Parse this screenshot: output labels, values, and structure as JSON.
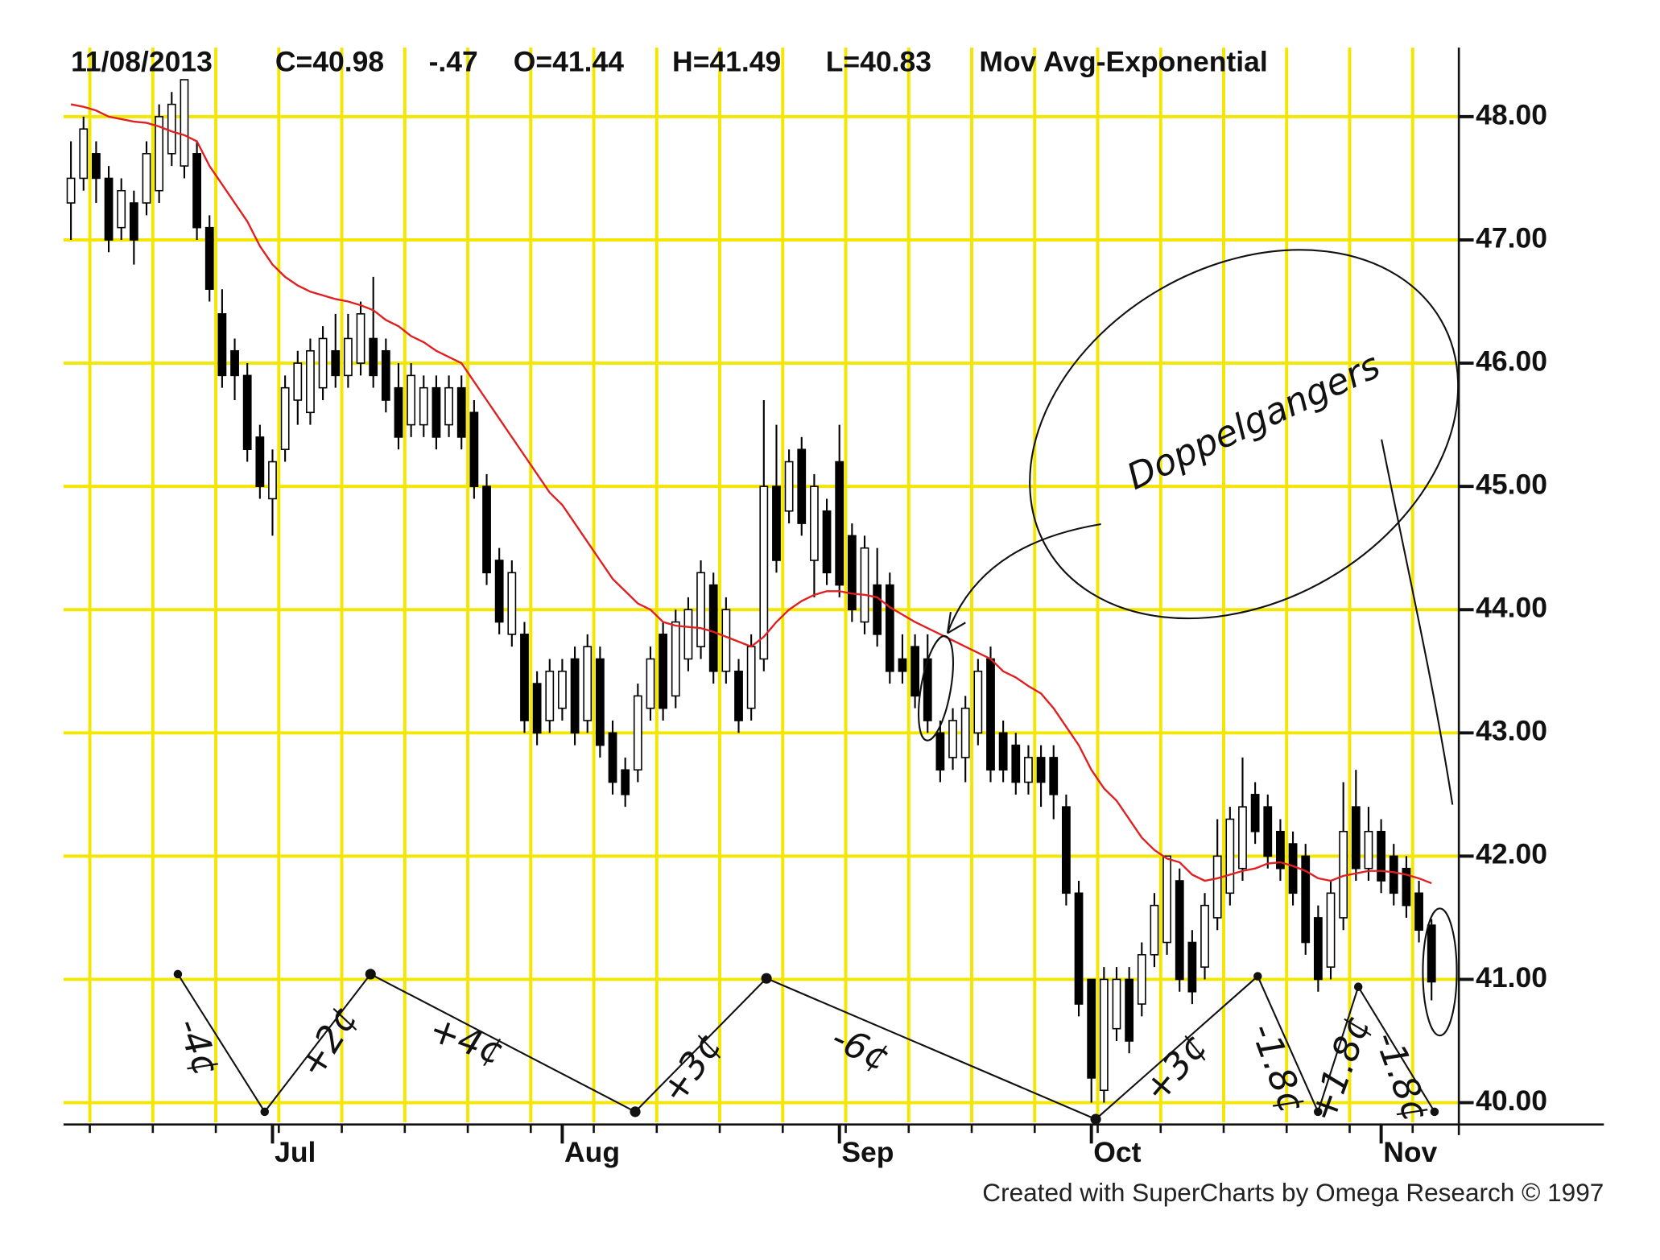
{
  "chart_data": {
    "type": "candlestick",
    "date": "11/08/2013",
    "quote": [
      {
        "text": "C=40.98"
      },
      {
        "text": "-.47",
        "color": "#d42020"
      },
      {
        "text": "O=41.44"
      },
      {
        "text": "H=41.49"
      },
      {
        "text": "L=40.83"
      }
    ],
    "categories": [
      null,
      null,
      null,
      null,
      null,
      null,
      null,
      null,
      null,
      null,
      null,
      null,
      null,
      null,
      null,
      null,
      "Jul",
      null,
      null,
      null,
      null,
      null,
      null,
      null,
      null,
      null,
      null,
      null,
      null,
      null,
      null,
      null,
      null,
      null,
      null,
      null,
      null,
      null,
      null,
      "Aug",
      null,
      null,
      null,
      null,
      null,
      null,
      null,
      null,
      null,
      null,
      null,
      null,
      null,
      null,
      null,
      null,
      null,
      null,
      null,
      null,
      null,
      "Sep",
      null,
      null,
      null,
      null,
      null,
      null,
      null,
      null,
      null,
      null,
      null,
      null,
      null,
      null,
      null,
      null,
      null,
      null,
      null,
      "Oct",
      null,
      null,
      null,
      null,
      null,
      null,
      null,
      null,
      null,
      null,
      null,
      null,
      null,
      null,
      null,
      null,
      null,
      null,
      null,
      null,
      null,
      null,
      "Nov",
      null,
      null,
      null,
      null
    ],
    "open": [
      47.3,
      47.5,
      47.7,
      47.5,
      47.1,
      47.3,
      47.3,
      47.4,
      47.7,
      47.6,
      47.7,
      47.1,
      46.4,
      46.1,
      45.9,
      45.4,
      44.9,
      45.3,
      45.7,
      45.6,
      45.8,
      46.1,
      45.9,
      46.0,
      46.2,
      46.1,
      45.8,
      45.5,
      45.5,
      45.8,
      45.5,
      45.8,
      45.6,
      45.0,
      44.4,
      43.8,
      43.8,
      43.4,
      43.1,
      43.2,
      43.6,
      43.1,
      43.6,
      43.0,
      42.7,
      42.7,
      43.2,
      43.8,
      43.3,
      43.6,
      43.7,
      44.2,
      43.5,
      43.5,
      43.2,
      43.6,
      45.0,
      44.8,
      45.3,
      44.4,
      44.8,
      45.2,
      44.6,
      43.9,
      44.2,
      44.2,
      43.6,
      43.7,
      43.6,
      43.0,
      42.8,
      42.8,
      43.0,
      43.6,
      43.0,
      42.9,
      42.6,
      42.8,
      42.8,
      42.4,
      41.7,
      41.0,
      40.1,
      40.6,
      41.0,
      40.8,
      41.2,
      41.3,
      41.8,
      41.3,
      41.1,
      41.5,
      41.7,
      41.9,
      42.5,
      42.4,
      42.2,
      42.1,
      42.0,
      41.5,
      41.1,
      41.5,
      42.4,
      41.9,
      42.2,
      42.0,
      41.9,
      41.7,
      41.44
    ],
    "high": [
      47.8,
      48.0,
      47.8,
      47.6,
      47.5,
      47.4,
      47.8,
      48.1,
      48.2,
      48.3,
      47.8,
      47.2,
      46.6,
      46.2,
      46.0,
      45.5,
      45.3,
      45.9,
      46.1,
      46.2,
      46.3,
      46.4,
      46.4,
      46.5,
      46.7,
      46.2,
      46.0,
      46.0,
      45.9,
      45.9,
      45.9,
      45.9,
      45.7,
      45.1,
      44.5,
      44.4,
      43.9,
      43.5,
      43.6,
      43.6,
      43.7,
      43.8,
      43.7,
      43.1,
      42.8,
      43.4,
      43.7,
      43.9,
      44.0,
      44.1,
      44.4,
      44.3,
      44.1,
      43.6,
      43.8,
      45.7,
      45.5,
      45.3,
      45.4,
      45.1,
      44.9,
      45.5,
      44.7,
      44.6,
      44.5,
      44.3,
      43.8,
      43.8,
      43.8,
      43.1,
      43.2,
      43.3,
      43.6,
      43.7,
      43.1,
      43.0,
      42.9,
      42.9,
      42.9,
      42.5,
      41.8,
      41.0,
      41.1,
      41.1,
      41.1,
      41.3,
      41.7,
      42.0,
      41.9,
      41.4,
      41.7,
      42.3,
      42.4,
      42.8,
      42.6,
      42.5,
      42.3,
      42.2,
      42.1,
      41.6,
      41.8,
      42.6,
      42.7,
      42.4,
      42.3,
      42.1,
      42.0,
      41.8,
      41.49
    ],
    "low": [
      47.0,
      47.4,
      47.3,
      46.9,
      47.0,
      46.8,
      47.2,
      47.3,
      47.6,
      47.5,
      47.0,
      46.5,
      45.8,
      45.7,
      45.2,
      44.9,
      44.6,
      45.2,
      45.5,
      45.5,
      45.7,
      45.8,
      45.8,
      45.9,
      45.8,
      45.6,
      45.3,
      45.4,
      45.4,
      45.3,
      45.4,
      45.3,
      44.9,
      44.2,
      43.8,
      43.7,
      43.0,
      42.9,
      43.0,
      43.1,
      42.9,
      43.0,
      42.8,
      42.5,
      42.4,
      42.6,
      43.1,
      43.1,
      43.2,
      43.5,
      43.6,
      43.4,
      43.4,
      43.0,
      43.1,
      43.5,
      44.3,
      44.7,
      44.6,
      44.1,
      44.2,
      44.1,
      43.9,
      43.8,
      43.7,
      43.4,
      43.4,
      43.2,
      43.0,
      42.6,
      42.7,
      42.6,
      42.9,
      42.6,
      42.6,
      42.5,
      42.5,
      42.4,
      42.3,
      41.6,
      40.7,
      40.0,
      40.0,
      40.5,
      40.4,
      40.7,
      41.1,
      41.2,
      40.9,
      40.8,
      41.0,
      41.4,
      41.6,
      41.8,
      42.1,
      41.9,
      41.8,
      41.6,
      41.2,
      40.9,
      41.0,
      41.4,
      41.8,
      41.8,
      41.7,
      41.6,
      41.5,
      41.3,
      40.83
    ],
    "close": [
      47.5,
      47.9,
      47.5,
      47.0,
      47.4,
      47.0,
      47.7,
      48.0,
      48.1,
      48.3,
      47.1,
      46.6,
      45.9,
      45.9,
      45.3,
      45.0,
      45.2,
      45.8,
      46.0,
      46.1,
      46.2,
      45.9,
      46.2,
      46.4,
      45.9,
      45.7,
      45.4,
      45.9,
      45.8,
      45.4,
      45.8,
      45.4,
      45.0,
      44.3,
      43.9,
      44.3,
      43.1,
      43.0,
      43.5,
      43.5,
      43.0,
      43.7,
      42.9,
      42.6,
      42.5,
      43.3,
      43.6,
      43.2,
      43.9,
      44.0,
      44.3,
      43.5,
      44.0,
      43.1,
      43.7,
      45.0,
      44.4,
      45.2,
      44.7,
      45.0,
      44.3,
      44.2,
      44.0,
      44.5,
      43.8,
      43.5,
      43.5,
      43.3,
      43.1,
      42.7,
      43.1,
      43.2,
      43.5,
      42.7,
      42.7,
      42.6,
      42.8,
      42.6,
      42.5,
      41.7,
      40.8,
      40.2,
      41.0,
      41.0,
      40.5,
      41.2,
      41.6,
      42.0,
      41.0,
      40.9,
      41.6,
      42.0,
      42.3,
      42.4,
      42.2,
      42.0,
      41.9,
      41.7,
      41.3,
      41.0,
      41.7,
      42.2,
      41.9,
      42.2,
      41.8,
      41.7,
      41.6,
      41.4,
      40.98
    ],
    "candle_color": "#000000",
    "overlay": {
      "name": "Mov Avg-Exponential",
      "color": "#e02020",
      "values": [
        48.1,
        48.08,
        48.05,
        48.0,
        47.98,
        47.96,
        47.95,
        47.92,
        47.88,
        47.85,
        47.8,
        47.6,
        47.45,
        47.3,
        47.15,
        46.95,
        46.8,
        46.7,
        46.63,
        46.58,
        46.55,
        46.52,
        46.5,
        46.47,
        46.43,
        46.35,
        46.3,
        46.22,
        46.17,
        46.1,
        46.05,
        46.0,
        45.85,
        45.7,
        45.55,
        45.4,
        45.25,
        45.1,
        44.95,
        44.85,
        44.7,
        44.55,
        44.4,
        44.25,
        44.15,
        44.05,
        44.0,
        43.9,
        43.87,
        43.86,
        43.85,
        43.82,
        43.78,
        43.74,
        43.7,
        43.78,
        43.9,
        44.0,
        44.07,
        44.12,
        44.15,
        44.15,
        44.13,
        44.12,
        44.1,
        44.02,
        43.96,
        43.9,
        43.85,
        43.8,
        43.75,
        43.7,
        43.65,
        43.6,
        43.5,
        43.45,
        43.38,
        43.32,
        43.2,
        43.05,
        42.9,
        42.7,
        42.55,
        42.45,
        42.3,
        42.15,
        42.05,
        41.98,
        41.95,
        41.85,
        41.8,
        41.82,
        41.85,
        41.88,
        41.9,
        41.94,
        41.95,
        41.92,
        41.88,
        41.82,
        41.8,
        41.84,
        41.86,
        41.88,
        41.88,
        41.87,
        41.85,
        41.82,
        41.78
      ]
    },
    "ylim": [
      39.84,
      48.56
    ],
    "yticks": [
      {
        "value": 40,
        "label": "40.00"
      },
      {
        "value": 41,
        "label": "41.00"
      },
      {
        "value": 42,
        "label": "42.00"
      },
      {
        "value": 43,
        "label": "43.00"
      },
      {
        "value": 44,
        "label": "44.00"
      },
      {
        "value": 45,
        "label": "45.00"
      },
      {
        "value": 46,
        "label": "46.00"
      },
      {
        "value": 47,
        "label": "47.00"
      },
      {
        "value": 48,
        "label": "48.00"
      }
    ],
    "grid": true,
    "grid_color": "#f3e600",
    "credit": "Created with SuperCharts by Omega Research © 1997",
    "annotations": [
      "-4¢",
      "+2¢",
      "+4¢",
      "+3¢",
      "-6¢",
      "+3¢",
      "-1.8¢",
      "+1.8¢",
      "-1.8¢",
      "Doppelgangers"
    ]
  }
}
